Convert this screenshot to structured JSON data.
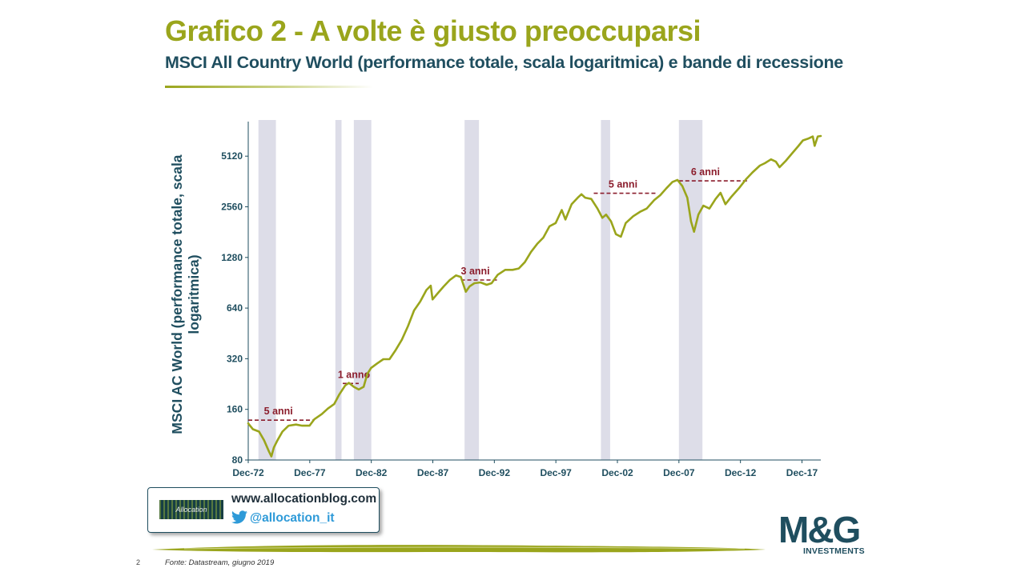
{
  "header": {
    "title": "Grafico 2 - A volte è giusto preoccuparsi",
    "subtitle": "MSCI All Country World (performance totale, scala logaritmica) e bande di recessione"
  },
  "chart_data": {
    "type": "line",
    "ylabel": "MSCI AC World (performance totale, scala logaritmica)",
    "xlabel": "",
    "y_scale": "log",
    "ylim": [
      80,
      8000
    ],
    "y_ticks": [
      80,
      160,
      320,
      640,
      1280,
      2560,
      5120
    ],
    "xlim": [
      1972.92,
      2019.45
    ],
    "x_ticks": [
      "Dec-72",
      "Dec-77",
      "Dec-82",
      "Dec-87",
      "Dec-92",
      "Dec-97",
      "Dec-02",
      "Dec-07",
      "Dec-12",
      "Dec-17"
    ],
    "x_tick_values": [
      1972.92,
      1977.92,
      1982.92,
      1987.92,
      1992.92,
      1997.92,
      2002.92,
      2007.92,
      2012.92,
      2017.92
    ],
    "line_color": "#9aa51c",
    "recession_color": "#dddde8",
    "recessions": [
      {
        "start": 1973.75,
        "end": 1975.17
      },
      {
        "start": 1980.0,
        "end": 1980.5
      },
      {
        "start": 1981.5,
        "end": 1982.92
      },
      {
        "start": 1990.5,
        "end": 1991.67
      },
      {
        "start": 2001.58,
        "end": 2002.33
      },
      {
        "start": 2007.92,
        "end": 2009.83
      }
    ],
    "annotations": [
      {
        "label": "5 anni",
        "y": 138,
        "x_start": 1972.92,
        "x_end": 1978.2,
        "label_x": 1974.2
      },
      {
        "label": "1 anno",
        "y": 228,
        "x_start": 1980.6,
        "x_end": 1981.9,
        "label_x": 1980.2
      },
      {
        "label": "3 anni",
        "y": 940,
        "x_start": 1990.2,
        "x_end": 1993.2,
        "label_x": 1990.2
      },
      {
        "label": "5 anni",
        "y": 3080,
        "x_start": 2001.0,
        "x_end": 2006.2,
        "label_x": 2002.2
      },
      {
        "label": "6 anni",
        "y": 3650,
        "x_start": 2007.92,
        "x_end": 2013.5,
        "label_x": 2008.9
      }
    ],
    "series": [
      {
        "values": [
          [
            1972.92,
            132
          ],
          [
            1973.3,
            122
          ],
          [
            1973.8,
            118
          ],
          [
            1974.2,
            105
          ],
          [
            1974.6,
            90
          ],
          [
            1974.8,
            84
          ],
          [
            1975.0,
            95
          ],
          [
            1975.3,
            105
          ],
          [
            1975.7,
            118
          ],
          [
            1976.2,
            128
          ],
          [
            1976.8,
            130
          ],
          [
            1977.3,
            128
          ],
          [
            1977.9,
            128
          ],
          [
            1978.3,
            140
          ],
          [
            1978.9,
            150
          ],
          [
            1979.4,
            162
          ],
          [
            1979.9,
            172
          ],
          [
            1980.3,
            195
          ],
          [
            1980.8,
            222
          ],
          [
            1981.1,
            230
          ],
          [
            1981.5,
            218
          ],
          [
            1981.9,
            210
          ],
          [
            1982.3,
            218
          ],
          [
            1982.6,
            260
          ],
          [
            1982.9,
            282
          ],
          [
            1983.4,
            300
          ],
          [
            1983.9,
            318
          ],
          [
            1984.4,
            318
          ],
          [
            1984.9,
            360
          ],
          [
            1985.4,
            415
          ],
          [
            1985.9,
            500
          ],
          [
            1986.4,
            620
          ],
          [
            1986.9,
            700
          ],
          [
            1987.4,
            820
          ],
          [
            1987.75,
            870
          ],
          [
            1987.9,
            720
          ],
          [
            1988.3,
            780
          ],
          [
            1988.8,
            860
          ],
          [
            1989.3,
            940
          ],
          [
            1989.8,
            1000
          ],
          [
            1990.2,
            980
          ],
          [
            1990.6,
            800
          ],
          [
            1990.9,
            860
          ],
          [
            1991.3,
            900
          ],
          [
            1991.8,
            910
          ],
          [
            1992.3,
            880
          ],
          [
            1992.7,
            900
          ],
          [
            1993.2,
            1010
          ],
          [
            1993.8,
            1080
          ],
          [
            1994.4,
            1080
          ],
          [
            1994.9,
            1100
          ],
          [
            1995.4,
            1200
          ],
          [
            1995.9,
            1380
          ],
          [
            1996.4,
            1540
          ],
          [
            1996.9,
            1680
          ],
          [
            1997.4,
            1960
          ],
          [
            1997.9,
            2050
          ],
          [
            1998.4,
            2450
          ],
          [
            1998.7,
            2150
          ],
          [
            1999.2,
            2650
          ],
          [
            1999.7,
            2900
          ],
          [
            2000.0,
            3040
          ],
          [
            2000.3,
            2900
          ],
          [
            2000.8,
            2850
          ],
          [
            2001.3,
            2500
          ],
          [
            2001.7,
            2200
          ],
          [
            2002.0,
            2300
          ],
          [
            2002.4,
            2100
          ],
          [
            2002.8,
            1760
          ],
          [
            2003.2,
            1700
          ],
          [
            2003.6,
            2050
          ],
          [
            2004.2,
            2250
          ],
          [
            2004.8,
            2400
          ],
          [
            2005.3,
            2500
          ],
          [
            2005.9,
            2800
          ],
          [
            2006.4,
            3000
          ],
          [
            2006.9,
            3300
          ],
          [
            2007.4,
            3600
          ],
          [
            2007.8,
            3700
          ],
          [
            2008.2,
            3400
          ],
          [
            2008.6,
            2900
          ],
          [
            2008.9,
            2100
          ],
          [
            2009.15,
            1820
          ],
          [
            2009.5,
            2300
          ],
          [
            2009.9,
            2600
          ],
          [
            2010.4,
            2500
          ],
          [
            2010.9,
            2850
          ],
          [
            2011.3,
            3100
          ],
          [
            2011.7,
            2650
          ],
          [
            2012.2,
            2950
          ],
          [
            2012.8,
            3300
          ],
          [
            2013.4,
            3750
          ],
          [
            2013.9,
            4100
          ],
          [
            2014.5,
            4500
          ],
          [
            2014.9,
            4650
          ],
          [
            2015.4,
            4900
          ],
          [
            2015.8,
            4750
          ],
          [
            2016.1,
            4400
          ],
          [
            2016.6,
            4800
          ],
          [
            2017.1,
            5300
          ],
          [
            2017.6,
            5850
          ],
          [
            2018.0,
            6350
          ],
          [
            2018.4,
            6500
          ],
          [
            2018.8,
            6700
          ],
          [
            2018.95,
            5900
          ],
          [
            2019.2,
            6700
          ],
          [
            2019.45,
            6750
          ]
        ]
      }
    ]
  },
  "badge": {
    "logo_text": "Allocation",
    "url": "www.allocationblog.com",
    "twitter": "@allocation_it"
  },
  "footer": {
    "page_number": "2",
    "source": "Fonte: Datastream, giugno 2019"
  },
  "brand": {
    "logo_main": "M&G",
    "logo_sub": "INVESTMENTS"
  }
}
